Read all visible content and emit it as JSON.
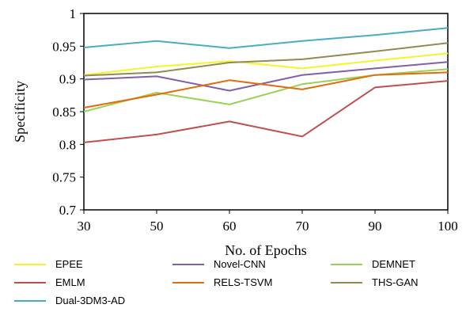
{
  "chart_data": {
    "type": "line",
    "xlabel": "No. of Epochs",
    "ylabel": "Specificity",
    "x": [
      30,
      50,
      60,
      70,
      90,
      100
    ],
    "x_ticks": [
      "30",
      "50",
      "60",
      "70",
      "90",
      "100"
    ],
    "ylim": [
      0.7,
      1.0
    ],
    "y_ticks": [
      "0.7",
      "0.75",
      "0.8",
      "0.85",
      "0.9",
      "0.95",
      "1"
    ],
    "grid": false,
    "legend_position": "bottom",
    "series": [
      {
        "name": "EPEE",
        "color": "#f5f52a",
        "values": [
          0.906,
          0.919,
          0.927,
          0.916,
          0.928,
          0.939
        ]
      },
      {
        "name": "Novel-CNN",
        "color": "#8060a8",
        "values": [
          0.899,
          0.904,
          0.882,
          0.906,
          0.916,
          0.926
        ]
      },
      {
        "name": "DEMNET",
        "color": "#9bd155",
        "values": [
          0.85,
          0.879,
          0.861,
          0.892,
          0.906,
          0.915
        ]
      },
      {
        "name": "EMLM",
        "color": "#c0504d",
        "values": [
          0.803,
          0.815,
          0.835,
          0.812,
          0.887,
          0.897
        ]
      },
      {
        "name": "RELS-TSVM",
        "color": "#e36c0a",
        "values": [
          0.856,
          0.876,
          0.898,
          0.884,
          0.906,
          0.91
        ]
      },
      {
        "name": "THS-GAN",
        "color": "#948a54",
        "values": [
          0.905,
          0.91,
          0.925,
          0.93,
          0.942,
          0.955
        ]
      },
      {
        "name": "Dual-3DM3-AD",
        "color": "#4bacc6",
        "values": [
          0.948,
          0.958,
          0.947,
          0.958,
          0.967,
          0.978
        ]
      }
    ]
  }
}
